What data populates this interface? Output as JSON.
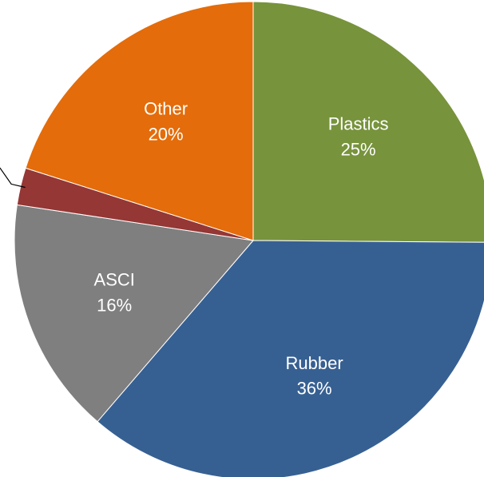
{
  "chart_data": {
    "type": "pie",
    "title": "",
    "start_angle_deg": 0,
    "direction": "clockwise",
    "slices": [
      {
        "label": "Plastics",
        "value": 25,
        "value_label": "25%",
        "color": "#77933C",
        "label_color": "#ffffff"
      },
      {
        "label": "Rubber",
        "value": 36,
        "value_label": "36%",
        "color": "#376092",
        "label_color": "#ffffff"
      },
      {
        "label": "ASCI",
        "value": 16,
        "value_label": "16%",
        "color": "#7F7F7F",
        "label_color": "#ffffff"
      },
      {
        "label": "",
        "value": 2.5,
        "value_label": "",
        "color": "#953735",
        "label_color": "#000000"
      },
      {
        "label": "Other",
        "value": 20,
        "value_label": "20%",
        "color": "#E46C0A",
        "label_color": "#000000"
      }
    ]
  }
}
